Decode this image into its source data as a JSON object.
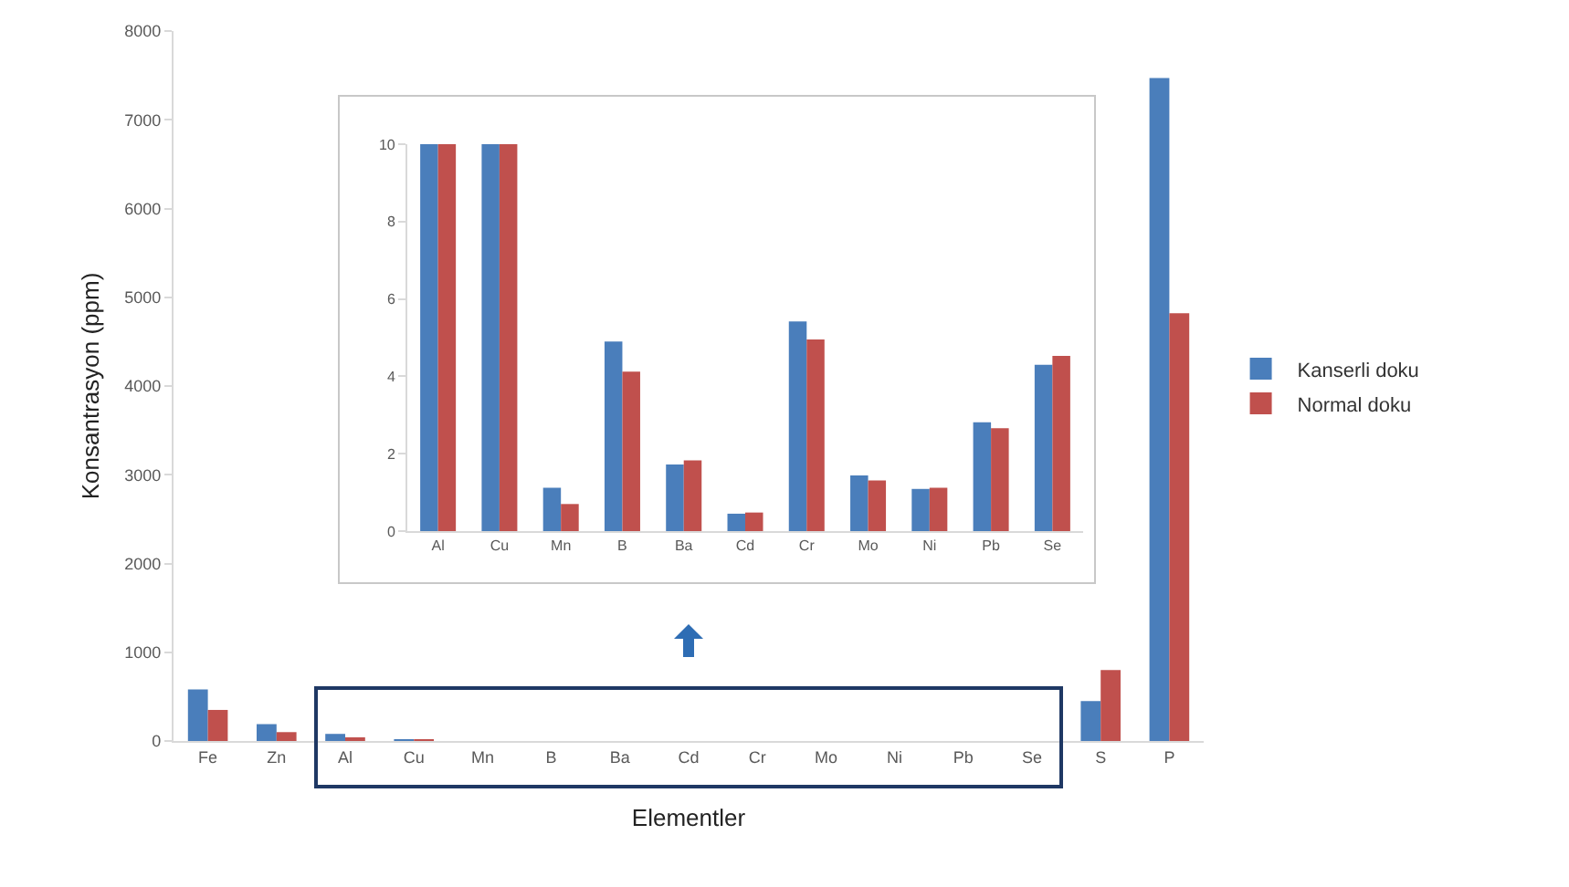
{
  "chart_data": [
    {
      "type": "bar",
      "xlabel": "Elementler",
      "ylabel": "Konsantrasyon (ppm)",
      "categories": [
        "Fe",
        "Zn",
        "Al",
        "Cu",
        "Mn",
        "B",
        "Ba",
        "Cd",
        "Cr",
        "Mo",
        "Ni",
        "Pb",
        "Se",
        "S",
        "P"
      ],
      "series": [
        {
          "name": "Kanserli doku",
          "color": "#4a7ebb",
          "values": [
            580,
            190,
            80,
            20,
            0,
            0,
            0,
            0,
            0,
            0,
            0,
            0,
            0,
            450,
            7470
          ]
        },
        {
          "name": "Normal doku",
          "color": "#c0504d",
          "values": [
            350,
            100,
            30,
            10,
            0,
            0,
            0,
            0,
            0,
            0,
            0,
            0,
            0,
            800,
            4820
          ]
        }
      ],
      "ylim": [
        0,
        8000
      ],
      "yticks": [
        0,
        1000,
        2000,
        3000,
        4000,
        5000,
        6000,
        7000,
        8000
      ],
      "grid": false,
      "legend": "right"
    },
    {
      "type": "bar",
      "categories": [
        "Al",
        "Cu",
        "Mn",
        "B",
        "Ba",
        "Cd",
        "Cr",
        "Mo",
        "Ni",
        "Pb",
        "Se"
      ],
      "series": [
        {
          "color": "#4a7ebb",
          "values": [
            10,
            10,
            1.12,
            4.9,
            1.72,
            0.45,
            5.42,
            1.44,
            1.09,
            2.81,
            4.3
          ]
        },
        {
          "color": "#c0504d",
          "values": [
            10,
            10,
            0.7,
            4.12,
            1.83,
            0.48,
            4.95,
            1.31,
            1.12,
            2.66,
            4.53
          ]
        }
      ],
      "ylim": [
        0,
        10
      ],
      "yticks": [
        0,
        2,
        4,
        6,
        8,
        10
      ],
      "grid": false,
      "legend": false
    }
  ]
}
